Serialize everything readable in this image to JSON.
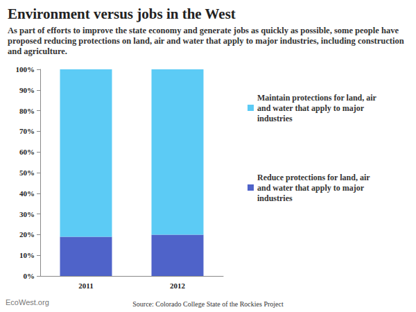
{
  "chart_data": {
    "type": "bar",
    "title": "Environment versus jobs in the West",
    "subtitle": "As part of efforts to improve the state economy and generate jobs as quickly as possible, some people have proposed reducing protections on land, air and water that apply to major industries, including construction and agriculture.",
    "source": "Source: Colorado College State of the Rockies Project",
    "credit": "EcoWest.org",
    "categories": [
      "2011",
      "2012"
    ],
    "series": [
      {
        "name": "Reduce protections for land, air and water that apply to major industries",
        "color": "#4f63c9",
        "values": [
          19,
          20
        ]
      },
      {
        "name": "Maintain protections for land, air and water that apply to major industries",
        "color": "#5ccbf5",
        "values": [
          81,
          80
        ]
      }
    ],
    "stacked": true,
    "ylim": [
      0,
      100
    ],
    "yticks": [
      {
        "value": 0,
        "label": "0%"
      },
      {
        "value": 10,
        "label": "10%"
      },
      {
        "value": 20,
        "label": "20%"
      },
      {
        "value": 30,
        "label": "30%"
      },
      {
        "value": 40,
        "label": "40%"
      },
      {
        "value": 50,
        "label": "50%"
      },
      {
        "value": 60,
        "label": "60%"
      },
      {
        "value": 70,
        "label": "70%"
      },
      {
        "value": 80,
        "label": "80%"
      },
      {
        "value": 90,
        "label": "90%"
      },
      {
        "value": 100,
        "label": "100%"
      }
    ],
    "grid": false,
    "legend": "right"
  }
}
